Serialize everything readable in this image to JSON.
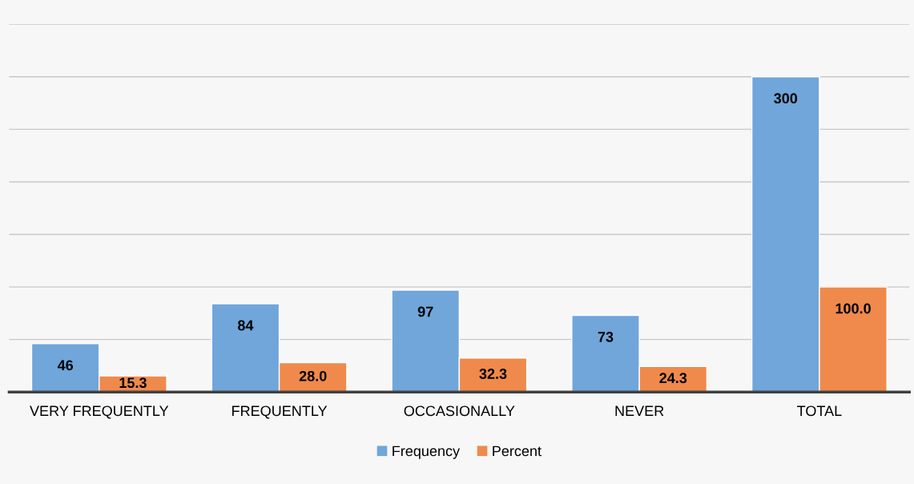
{
  "chart_data": {
    "type": "bar",
    "categories": [
      "VERY FREQUENTLY",
      "FREQUENTLY",
      "OCCASIONALLY",
      "NEVER",
      "TOTAL"
    ],
    "series": [
      {
        "name": "Frequency",
        "color": "#70a6da",
        "values": [
          46,
          84,
          97,
          73,
          300
        ],
        "value_labels": [
          "46",
          "84",
          "97",
          "73",
          "300"
        ]
      },
      {
        "name": "Percent",
        "color": "#ef8a4c",
        "values": [
          15.3,
          28.0,
          32.3,
          24.3,
          100.0
        ],
        "value_labels": [
          "15.3",
          "28.0",
          "32.3",
          "24.3",
          "100.0"
        ]
      }
    ],
    "ylim": [
      0,
      350
    ],
    "yticks": [
      {
        "value": 0,
        "label": null
      },
      {
        "value": 50,
        "label": null
      },
      {
        "value": 100,
        "label": null
      },
      {
        "value": 150,
        "label": null
      },
      {
        "value": 200,
        "label": null
      },
      {
        "value": 250,
        "label": null
      },
      {
        "value": 300,
        "label": null
      },
      {
        "value": 350,
        "label": null
      }
    ],
    "grid": "y",
    "legend": "bottom",
    "tick_labels": "x"
  }
}
